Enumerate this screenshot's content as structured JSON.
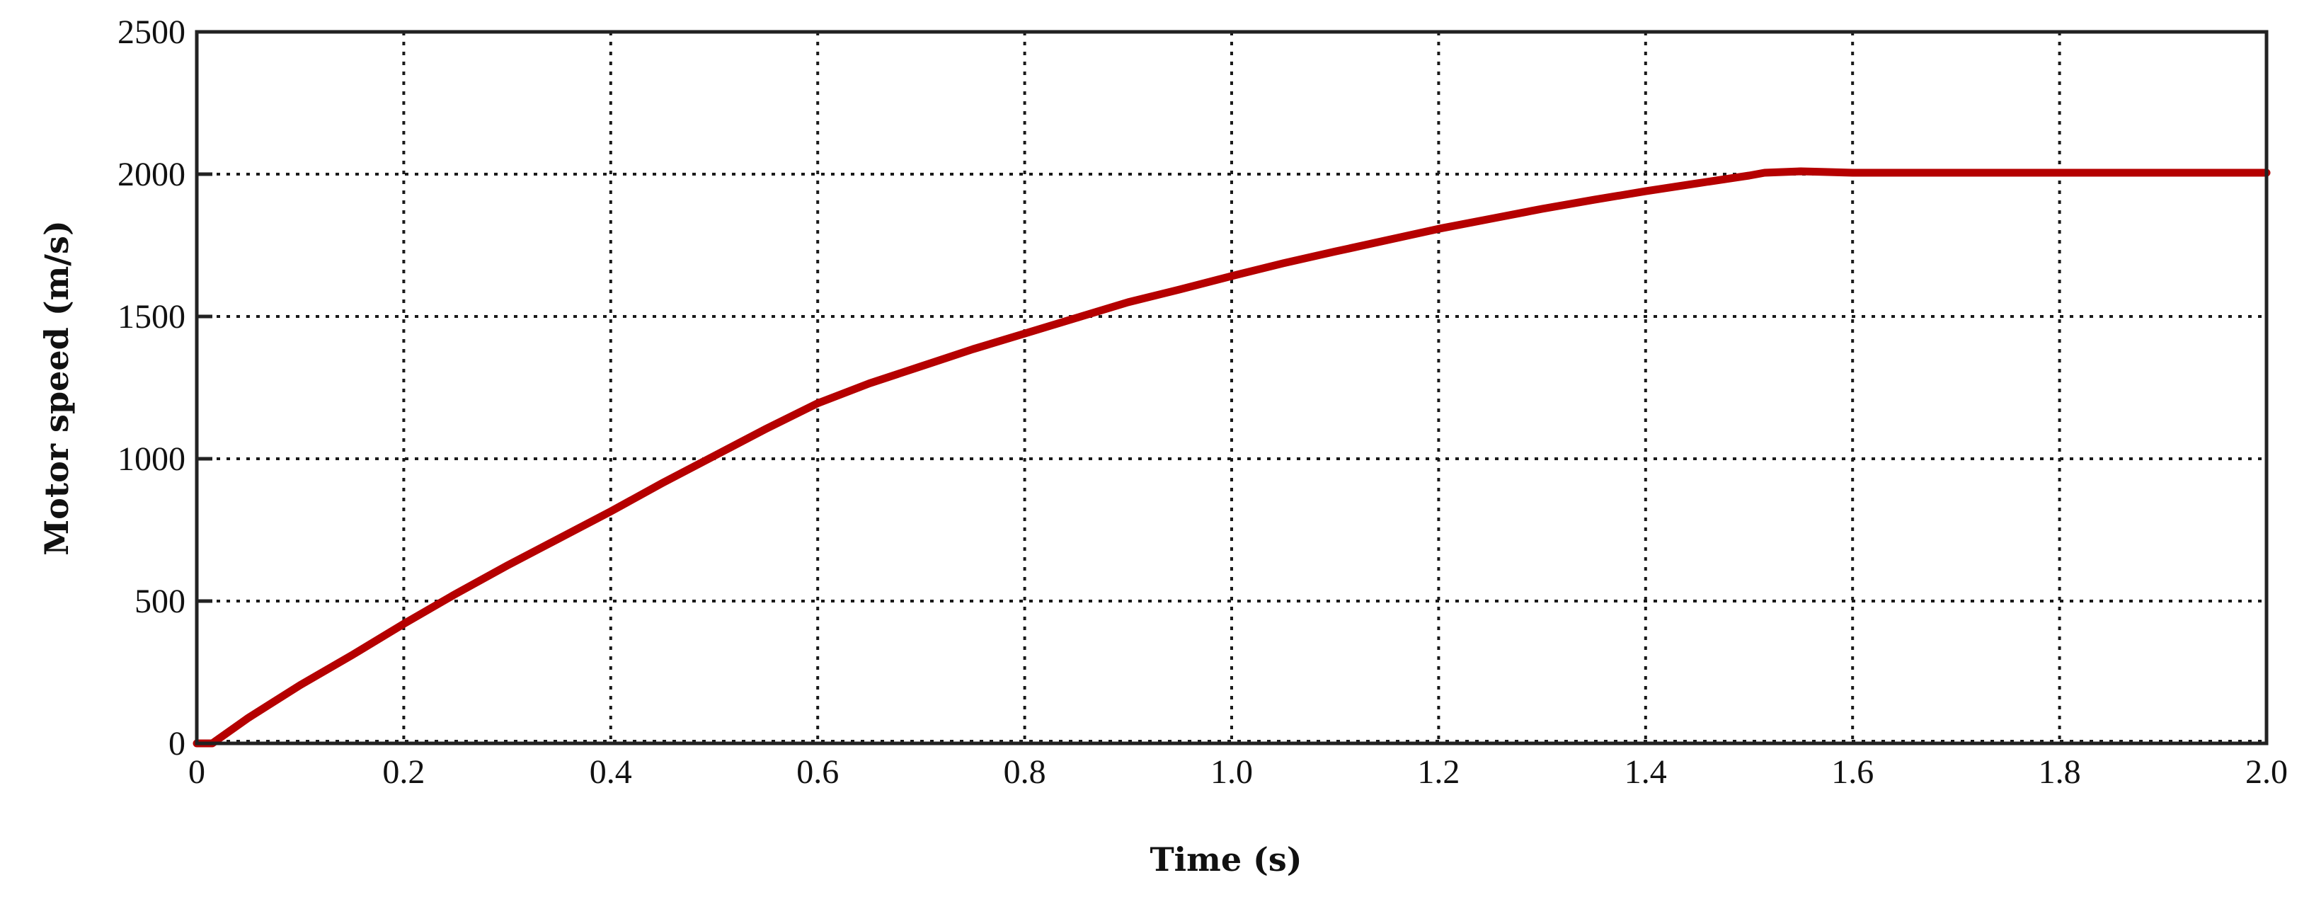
{
  "chart_data": {
    "type": "line",
    "title": "",
    "xlabel": "Time (s)",
    "ylabel": "Motor speed (m/s)",
    "xlim": [
      0,
      2.0
    ],
    "ylim": [
      0,
      2500
    ],
    "grid": true,
    "legend": null,
    "x_ticks": [
      "0",
      "0.2",
      "0.4",
      "0.6",
      "0.8",
      "1.0",
      "1.2",
      "1.4",
      "1.6",
      "1.8",
      "2.0"
    ],
    "y_ticks": [
      "0",
      "500",
      "1000",
      "1500",
      "2000",
      "2500"
    ],
    "series": [
      {
        "name": "Motor speed",
        "color": "#B50000",
        "x": [
          0.0,
          0.015,
          0.05,
          0.1,
          0.15,
          0.2,
          0.25,
          0.3,
          0.35,
          0.4,
          0.45,
          0.5,
          0.55,
          0.6,
          0.65,
          0.7,
          0.75,
          0.8,
          0.85,
          0.9,
          0.95,
          1.0,
          1.05,
          1.1,
          1.15,
          1.2,
          1.25,
          1.3,
          1.35,
          1.4,
          1.45,
          1.5,
          1.515,
          1.55,
          1.57,
          1.6,
          1.7,
          1.8,
          1.9,
          2.0
        ],
        "values": [
          0,
          0,
          90,
          205,
          310,
          420,
          525,
          625,
          720,
          815,
          915,
          1010,
          1105,
          1195,
          1265,
          1325,
          1385,
          1440,
          1495,
          1550,
          1595,
          1642,
          1687,
          1728,
          1768,
          1808,
          1843,
          1878,
          1910,
          1940,
          1968,
          1995,
          2005,
          2010,
          2008,
          2005,
          2005,
          2005,
          2005,
          2005
        ]
      }
    ]
  }
}
